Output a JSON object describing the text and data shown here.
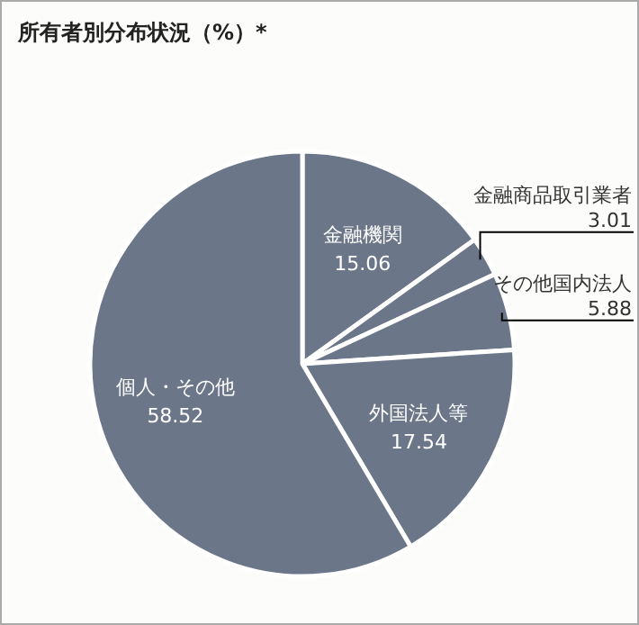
{
  "chart_data": {
    "type": "pie",
    "title": "所有者別分布状況（%）*",
    "categories": [
      "金融機関",
      "金融商品取引業者",
      "その他国内法人",
      "外国法人等",
      "個人・その他"
    ],
    "values": [
      15.06,
      3.01,
      5.88,
      17.54,
      58.52
    ],
    "colors": [
      "#6b7688",
      "#6b7688",
      "#6b7688",
      "#6b7688",
      "#6b7688"
    ],
    "data_labels": true
  }
}
